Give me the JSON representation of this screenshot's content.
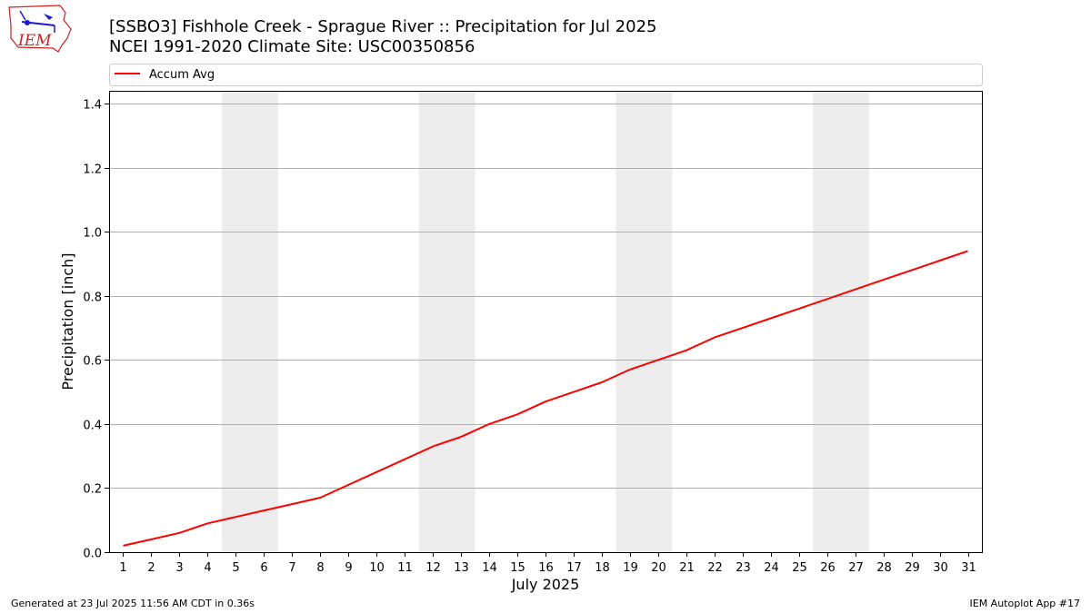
{
  "header": {
    "logo_text": "IEM",
    "title_line1": "[SSBO3] Fishhole Creek - Sprague River :: Precipitation for Jul 2025",
    "title_line2": "NCEI 1991-2020 Climate Site: USC00350856"
  },
  "footer": {
    "left": "Generated at 23 Jul 2025 11:56 AM CDT in 0.36s",
    "right": "IEM Autoplot App #17"
  },
  "colors": {
    "line": "#ff0000",
    "weekend_band": "#ededed",
    "grid": "#b0b0b0",
    "logo_red": "#cc2222",
    "logo_blue": "#1a1ad6"
  },
  "chart_data": {
    "type": "line",
    "xlabel": "July 2025",
    "ylabel": "Precipitation [inch]",
    "x": [
      1,
      2,
      3,
      4,
      5,
      6,
      7,
      8,
      9,
      10,
      11,
      12,
      13,
      14,
      15,
      16,
      17,
      18,
      19,
      20,
      21,
      22,
      23,
      24,
      25,
      26,
      27,
      28,
      29,
      30,
      31
    ],
    "series": [
      {
        "name": "Accum Avg",
        "color": "#ff0000",
        "values": [
          0.02,
          0.04,
          0.06,
          0.09,
          0.11,
          0.13,
          0.15,
          0.17,
          0.21,
          0.25,
          0.29,
          0.33,
          0.36,
          0.4,
          0.43,
          0.47,
          0.5,
          0.53,
          0.57,
          0.6,
          0.63,
          0.67,
          0.7,
          0.73,
          0.76,
          0.79,
          0.82,
          0.85,
          0.88,
          0.91,
          0.94
        ]
      }
    ],
    "weekend_bands": [
      [
        5,
        6
      ],
      [
        12,
        13
      ],
      [
        19,
        20
      ],
      [
        26,
        27
      ]
    ],
    "xlim": [
      0.5,
      31.5
    ],
    "ylim": [
      0.0,
      1.44
    ],
    "yticks": [
      0.0,
      0.2,
      0.4,
      0.6,
      0.8,
      1.0,
      1.2,
      1.4
    ],
    "ytick_labels": [
      "0.0",
      "0.2",
      "0.4",
      "0.6",
      "0.8",
      "1.0",
      "1.2",
      "1.4"
    ],
    "xtick_labels": [
      "1",
      "2",
      "3",
      "4",
      "5",
      "6",
      "7",
      "8",
      "9",
      "10",
      "11",
      "12",
      "13",
      "14",
      "15",
      "16",
      "17",
      "18",
      "19",
      "20",
      "21",
      "22",
      "23",
      "24",
      "25",
      "26",
      "27",
      "28",
      "29",
      "30",
      "31"
    ],
    "grid": "horizontal",
    "legend_position": "top, above plot"
  }
}
